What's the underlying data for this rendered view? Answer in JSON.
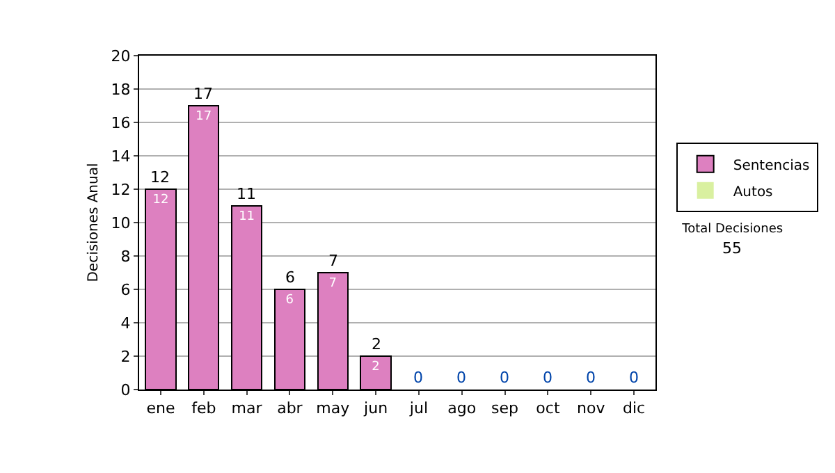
{
  "chart_data": {
    "type": "bar",
    "stacked": true,
    "ylabel": "Decisiones Anual",
    "categories": [
      "ene",
      "feb",
      "mar",
      "abr",
      "may",
      "jun",
      "jul",
      "ago",
      "sep",
      "oct",
      "nov",
      "dic"
    ],
    "series": [
      {
        "name": "Sentencias",
        "color": "#dd80c0",
        "values": [
          12,
          17,
          11,
          6,
          7,
          2,
          0,
          0,
          0,
          0,
          0,
          0
        ],
        "value_labels": [
          "12",
          "17",
          "11",
          "6",
          "7",
          "2",
          null,
          null,
          null,
          null,
          null,
          null
        ]
      },
      {
        "name": "Autos",
        "color": "#d9f0a0",
        "values": [
          0,
          0,
          0,
          0,
          0,
          0,
          0,
          0,
          0,
          0,
          0,
          0
        ]
      }
    ],
    "totals": [
      "12",
      "17",
      "11",
      "6",
      "7",
      "2",
      "0",
      "0",
      "0",
      "0",
      "0",
      "0"
    ],
    "ylim": [
      0,
      20
    ],
    "yticks": [
      0,
      2,
      4,
      6,
      8,
      10,
      12,
      14,
      16,
      18,
      20
    ],
    "grid": "y",
    "legend": "right",
    "annotations": [
      "Total Decisiones",
      "55"
    ]
  }
}
